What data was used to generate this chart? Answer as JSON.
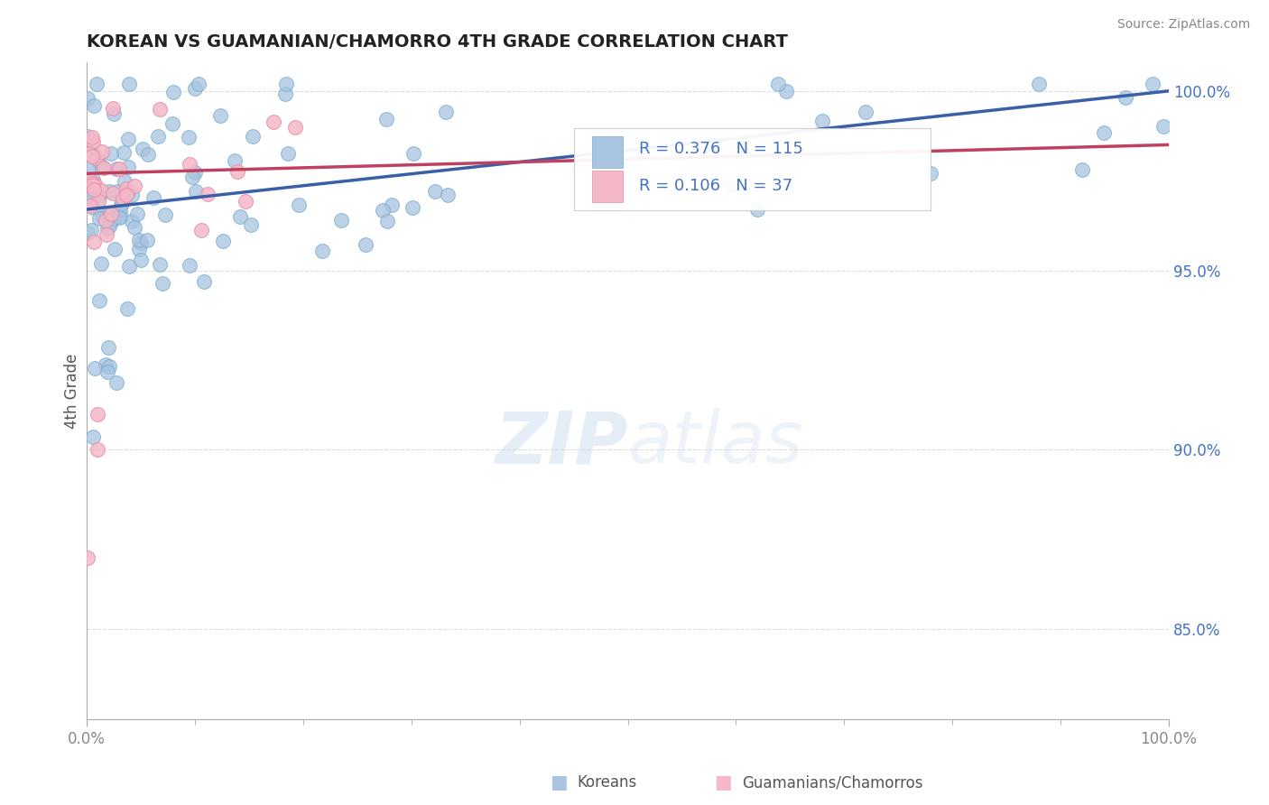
{
  "title": "KOREAN VS GUAMANIAN/CHAMORRO 4TH GRADE CORRELATION CHART",
  "source": "Source: ZipAtlas.com",
  "ylabel": "4th Grade",
  "xlim": [
    0.0,
    1.0
  ],
  "ylim": [
    0.825,
    1.008
  ],
  "yticks": [
    0.85,
    0.9,
    0.95,
    1.0
  ],
  "ytick_labels": [
    "85.0%",
    "90.0%",
    "95.0%",
    "100.0%"
  ],
  "korean_color": "#a8c4e0",
  "korean_edge_color": "#7aaed0",
  "guam_color": "#f4b8c8",
  "guam_edge_color": "#e890a8",
  "korean_line_color": "#3a5fa8",
  "guam_line_color": "#c04060",
  "R_korean": 0.376,
  "N_korean": 115,
  "R_guam": 0.106,
  "N_guam": 37,
  "stat_text_color": "#4472c4",
  "watermark_color": "#d0dff0",
  "legend_bg": "#f8f8f8",
  "legend_border": "#cccccc",
  "grid_color": "#dddddd",
  "spine_color": "#aaaaaa",
  "tick_color": "#888888",
  "title_color": "#222222",
  "source_color": "#888888",
  "ylabel_color": "#555555",
  "bottom_legend_color": "#555555"
}
